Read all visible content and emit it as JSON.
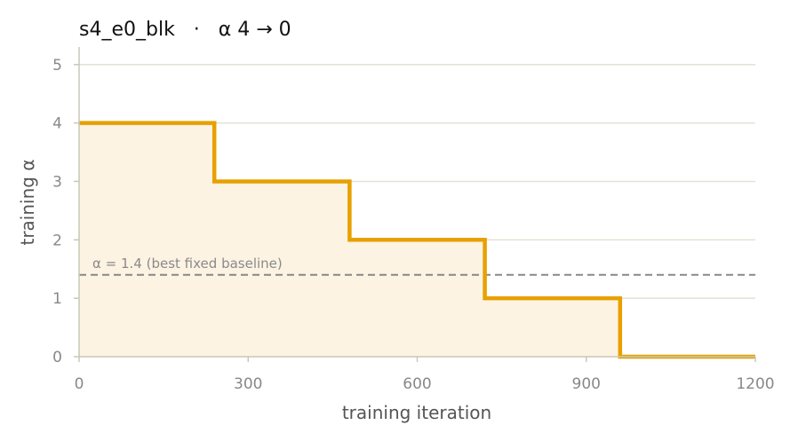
{
  "chart_data": {
    "type": "line",
    "style": "step",
    "title": "s4_e0_blk   ·   α 4 → 0",
    "xlabel": "training iteration",
    "ylabel": "training α",
    "xlim": [
      0,
      1200
    ],
    "ylim": [
      0,
      5.3
    ],
    "xticks": [
      0,
      300,
      600,
      900,
      1200
    ],
    "yticks": [
      0,
      1,
      2,
      3,
      4,
      5
    ],
    "grid": "horizontal",
    "series": [
      {
        "x": [
          0,
          240,
          480,
          720,
          960,
          1200
        ],
        "y": [
          4,
          3,
          2,
          1,
          0,
          0
        ],
        "color": "#e8a000",
        "fill": "#fcf3e2"
      }
    ],
    "reference_line": {
      "y": 1.4,
      "label": "α = 1.4 (best fixed baseline)",
      "style": "dashed",
      "color": "#888888"
    }
  }
}
